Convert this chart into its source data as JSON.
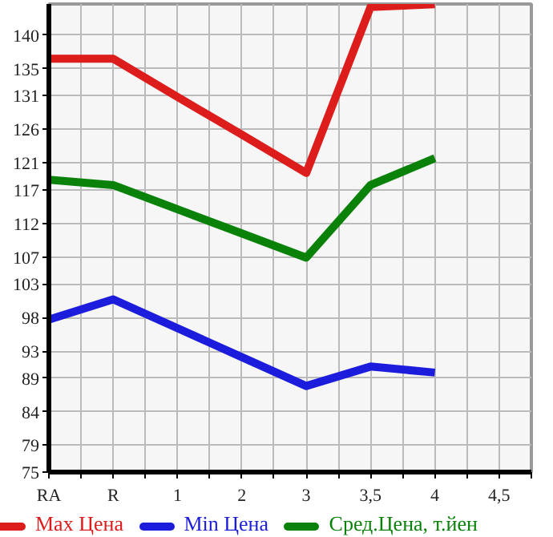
{
  "chart_data": {
    "type": "line",
    "categories": [
      "RA",
      "R",
      "1",
      "2",
      "3",
      "3,5",
      "4",
      "4,5"
    ],
    "series": [
      {
        "name": "Max Цена",
        "color": "#dd1c1c",
        "values": [
          136.5,
          136.5,
          130.8,
          125.2,
          119.5,
          144.2,
          144.6,
          null
        ]
      },
      {
        "name": "Min Цена",
        "color": "#1c1cdd",
        "values": [
          97.7,
          100.7,
          96.4,
          92.1,
          87.8,
          90.7,
          89.8,
          null
        ]
      },
      {
        "name": "Сред.Цена, т.йен",
        "color": "#0a820a",
        "values": [
          118.5,
          117.7,
          114.1,
          110.5,
          106.9,
          117.7,
          121.7,
          null
        ]
      }
    ],
    "ylim": [
      75,
      144.64
    ],
    "yticks": [
      75,
      79,
      84,
      89,
      93,
      98,
      103,
      107,
      112,
      117,
      121,
      126,
      131,
      135,
      140
    ],
    "grid": true,
    "legend": "bottom",
    "marker": "none",
    "line_style": "solid"
  }
}
